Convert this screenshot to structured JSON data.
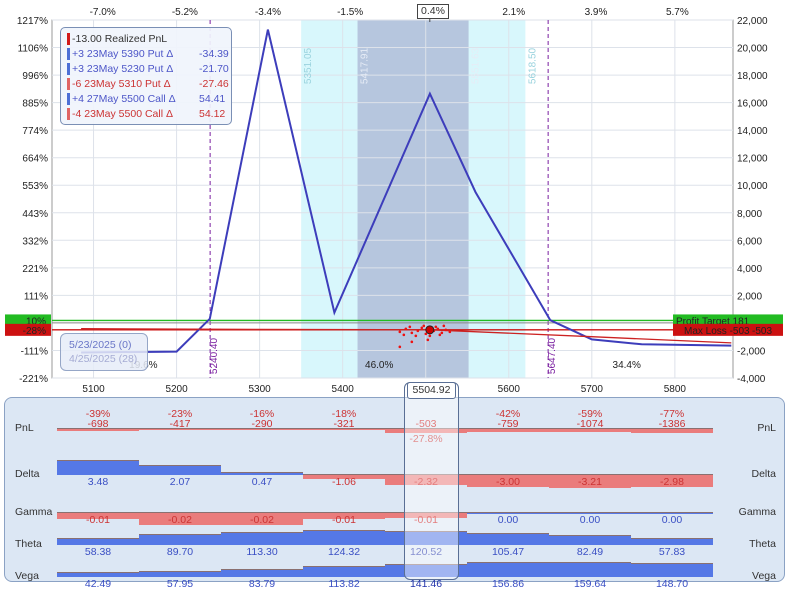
{
  "chart_data": {
    "type": "line",
    "title": "",
    "x_range": [
      5050,
      5870
    ],
    "x_ticks": [
      5100,
      5200,
      5300,
      5400,
      5500,
      5600,
      5700,
      5800
    ],
    "top_axis_ticks": [
      {
        "x": 5111,
        "label": "-7.0%"
      },
      {
        "x": 5210,
        "label": "-5.2%"
      },
      {
        "x": 5310,
        "label": "-3.4%"
      },
      {
        "x": 5409,
        "label": "-1.5%"
      },
      {
        "x": 5505,
        "label": "0.4%"
      },
      {
        "x": 5606,
        "label": "2.1%"
      },
      {
        "x": 5705,
        "label": "3.9%"
      },
      {
        "x": 5803,
        "label": "5.7%"
      }
    ],
    "right_axis": {
      "range": [
        -4000,
        22000
      ],
      "ticks": [
        -4000,
        -2000,
        2000,
        4000,
        6000,
        8000,
        10000,
        12000,
        14000,
        16000,
        18000,
        20000,
        22000
      ]
    },
    "left_axis_ticks": [
      {
        "value": 22000,
        "label": "1217%"
      },
      {
        "value": 20000,
        "label": "1106%"
      },
      {
        "value": 18000,
        "label": "996%"
      },
      {
        "value": 16000,
        "label": "885%"
      },
      {
        "value": 14000,
        "label": "774%"
      },
      {
        "value": 12000,
        "label": "664%"
      },
      {
        "value": 10000,
        "label": "553%"
      },
      {
        "value": 8000,
        "label": "443%"
      },
      {
        "value": 6000,
        "label": "332%"
      },
      {
        "value": 4000,
        "label": "221%"
      },
      {
        "value": 2000,
        "label": "111%"
      },
      {
        "value": -2000,
        "label": "-111%"
      },
      {
        "value": -4000,
        "label": "-221%"
      }
    ],
    "left_highlight_labels": [
      {
        "value": 181,
        "label": "10%",
        "color": "#22bb22"
      },
      {
        "value": -503,
        "label": "-28%",
        "color": "#cc1111"
      }
    ],
    "series": [
      {
        "name": "",
        "color": "#3d3dbb",
        "x": [
          5085,
          5200,
          5240,
          5310,
          5390,
          5505,
          5560,
          5650,
          5700,
          5760,
          5868
        ],
        "y": [
          -2150,
          -2080,
          300,
          21300,
          750,
          16650,
          9500,
          200,
          -1200,
          -1550,
          -1650
        ]
      },
      {
        "name": "",
        "color": "#cc2222",
        "x": [
          5085,
          5300,
          5504.92,
          5700,
          5868
        ],
        "y": [
          -420,
          -470,
          -503,
          -1000,
          -1450
        ]
      }
    ],
    "underlying_price": 5504.92,
    "current_pnl": -503,
    "profit_target": {
      "label": "Profit Target",
      "value": 181,
      "color": "#22bb22"
    },
    "max_loss": {
      "label": "Max Loss",
      "value": -503,
      "color": "#cc1111"
    },
    "shaded_bands": [
      {
        "from": 5350,
        "to": 5620,
        "color": "#d8f7fc"
      },
      {
        "from": 5417.91,
        "to": 5551.63,
        "color": "#b6c6de"
      }
    ],
    "band_labels": [
      "5351.05",
      "5417.91",
      "5551.63",
      "5618.50"
    ],
    "breakevens": [
      {
        "x": 5240.4,
        "label": "5240.40"
      },
      {
        "x": 5647.4,
        "label": "5647.40"
      }
    ],
    "probabilities": [
      {
        "x": 5160,
        "label": "19.6%"
      },
      {
        "x": 5444,
        "label": "46.0%"
      },
      {
        "x": 5742,
        "label": "34.4%"
      }
    ],
    "grid": true
  },
  "legend": [
    {
      "text": "-13.00 Realized PnL",
      "delta": "",
      "color": "#d21a1a",
      "textcolor": "#333333"
    },
    {
      "text": "+3 23May 5390 Put Δ",
      "delta": "-34.39",
      "color": "#4d6fd6",
      "textcolor": "#4d56c8"
    },
    {
      "text": "+3 23May 5230 Put Δ",
      "delta": "-21.70",
      "color": "#4d6fd6",
      "textcolor": "#4d56c8"
    },
    {
      "text": "-6 23May 5310 Put Δ",
      "delta": "-27.46",
      "color": "#e06464",
      "textcolor": "#cc3333"
    },
    {
      "text": "+4 27May 5500 Call Δ",
      "delta": "54.41",
      "color": "#4d6fd6",
      "textcolor": "#4d56c8"
    },
    {
      "text": "-4 23May 5500 Call Δ",
      "delta": "54.12",
      "color": "#e06464",
      "textcolor": "#cc3333"
    }
  ],
  "dates": {
    "current": "5/23/2025 (0)",
    "previous": "4/25/2025 (28)"
  },
  "greeks": {
    "columns": [
      5100,
      5200,
      5300,
      5400,
      5504.92,
      5600,
      5700,
      5800
    ],
    "highlight_label": "5504.92",
    "rows": [
      {
        "name": "PnL",
        "values": [
          "-698",
          "-417",
          "-290",
          "-321",
          "-503",
          "-759",
          "-1074",
          "-1386"
        ],
        "pct": [
          "-39%",
          "-23%",
          "-16%",
          "-18%",
          "-27.8%",
          "-42%",
          "-59%",
          "-77%"
        ],
        "bars": [
          -0.08,
          -0.07,
          -0.05,
          -0.05,
          -0.22,
          -0.13,
          -0.17,
          -0.22
        ]
      },
      {
        "name": "Delta",
        "values": [
          "3.48",
          "2.07",
          "0.47",
          "-1.06",
          "-2.32",
          "-3.00",
          "-3.21",
          "-2.98"
        ],
        "bars": [
          0.9,
          0.55,
          0.12,
          -0.28,
          -0.6,
          -0.78,
          -0.83,
          -0.78
        ]
      },
      {
        "name": "Gamma",
        "values": [
          "-0.01",
          "-0.02",
          "-0.02",
          "-0.01",
          "-0.01",
          "0.00",
          "0.00",
          "0.00"
        ],
        "bars": [
          -0.35,
          -0.75,
          -0.75,
          -0.35,
          -0.3,
          0,
          0,
          0
        ]
      },
      {
        "name": "Theta",
        "values": [
          "58.38",
          "89.70",
          "113.30",
          "124.32",
          "120.52",
          "105.47",
          "82.49",
          "57.83"
        ],
        "bars": [
          0.45,
          0.7,
          0.88,
          0.97,
          0.94,
          0.82,
          0.64,
          0.45
        ]
      },
      {
        "name": "Vega",
        "values": [
          "42.49",
          "57.95",
          "83.79",
          "113.82",
          "141.46",
          "156.86",
          "159.64",
          "148.70"
        ],
        "bars": [
          0.26,
          0.36,
          0.52,
          0.71,
          0.88,
          0.98,
          1.0,
          0.93
        ]
      }
    ]
  }
}
